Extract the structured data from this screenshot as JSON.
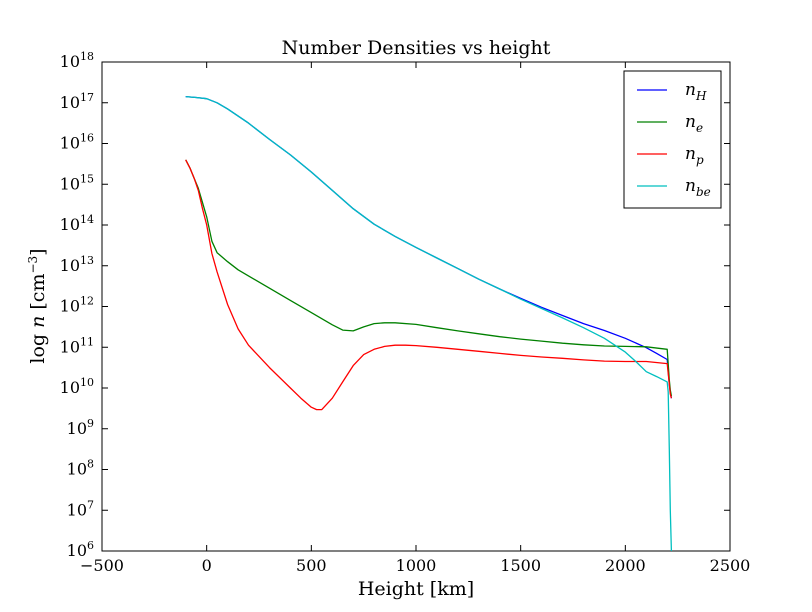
{
  "chart_data": {
    "type": "line",
    "title": "Number Densities vs height",
    "xlabel": "Height [km]",
    "ylabel": "log n [cm⁻³]",
    "xlim": [
      -500,
      2500
    ],
    "ylim_log10": [
      6,
      18
    ],
    "y_scale": "log",
    "x_ticks": [
      -500,
      0,
      500,
      1000,
      1500,
      2000,
      2500
    ],
    "x_tick_labels": [
      "−500",
      "0",
      "500",
      "1000",
      "1500",
      "2000",
      "2500"
    ],
    "y_ticks_log10": [
      6,
      7,
      8,
      9,
      10,
      11,
      12,
      13,
      14,
      15,
      16,
      17,
      18
    ],
    "y_tick_base": "10",
    "grid": false,
    "legend_position": "top-right",
    "series": [
      {
        "name": "n_H",
        "legend_main": "n",
        "legend_sub": "H",
        "color": "#0000ff",
        "x": [
          -100,
          -50,
          0,
          50,
          100,
          200,
          300,
          400,
          500,
          600,
          700,
          800,
          900,
          1000,
          1100,
          1200,
          1300,
          1400,
          1500,
          1600,
          1700,
          1800,
          1900,
          2000,
          2100,
          2150,
          2200,
          2210,
          2215,
          2220
        ],
        "log_y": [
          17.15,
          17.13,
          17.1,
          17.0,
          16.85,
          16.5,
          16.1,
          15.72,
          15.3,
          14.85,
          14.4,
          14.02,
          13.72,
          13.45,
          13.19,
          12.93,
          12.67,
          12.43,
          12.2,
          11.98,
          11.78,
          11.58,
          11.41,
          11.22,
          10.99,
          10.85,
          10.7,
          10.1,
          9.9,
          9.75
        ]
      },
      {
        "name": "n_e",
        "legend_main": "n",
        "legend_sub": "e",
        "color": "#008000",
        "x": [
          -100,
          -80,
          -60,
          -40,
          -20,
          0,
          25,
          50,
          100,
          150,
          200,
          300,
          400,
          500,
          600,
          650,
          700,
          750,
          800,
          850,
          900,
          1000,
          1100,
          1200,
          1300,
          1400,
          1500,
          1600,
          1700,
          1800,
          1900,
          2000,
          2100,
          2200,
          2210,
          2215,
          2220
        ],
        "log_y": [
          15.6,
          15.4,
          15.15,
          14.9,
          14.55,
          14.2,
          13.6,
          13.32,
          13.1,
          12.9,
          12.75,
          12.45,
          12.15,
          11.85,
          11.55,
          11.42,
          11.4,
          11.5,
          11.58,
          11.6,
          11.6,
          11.56,
          11.48,
          11.4,
          11.33,
          11.26,
          11.2,
          11.15,
          11.1,
          11.06,
          11.03,
          11.02,
          11.01,
          10.95,
          10.2,
          9.95,
          9.8
        ]
      },
      {
        "name": "n_p",
        "legend_main": "n",
        "legend_sub": "p",
        "color": "#ff0000",
        "x": [
          -100,
          -80,
          -60,
          -40,
          -20,
          0,
          25,
          50,
          100,
          150,
          200,
          300,
          400,
          450,
          500,
          525,
          550,
          600,
          650,
          700,
          750,
          800,
          850,
          900,
          950,
          1000,
          1100,
          1200,
          1300,
          1400,
          1500,
          1600,
          1700,
          1800,
          1900,
          2000,
          2100,
          2200,
          2210,
          2215,
          2220
        ],
        "log_y": [
          15.6,
          15.4,
          15.15,
          14.85,
          14.4,
          14.0,
          13.3,
          12.85,
          12.05,
          11.45,
          11.05,
          10.5,
          10.0,
          9.75,
          9.53,
          9.47,
          9.47,
          9.75,
          10.15,
          10.55,
          10.82,
          10.95,
          11.02,
          11.05,
          11.05,
          11.04,
          11.0,
          10.95,
          10.9,
          10.85,
          10.8,
          10.76,
          10.73,
          10.69,
          10.66,
          10.65,
          10.65,
          10.6,
          10.1,
          9.85,
          9.75
        ]
      },
      {
        "name": "n_be",
        "legend_main": "n",
        "legend_sub": "be",
        "color": "#00bfbf",
        "x": [
          -100,
          -50,
          0,
          50,
          100,
          200,
          300,
          400,
          500,
          600,
          700,
          800,
          900,
          1000,
          1100,
          1200,
          1300,
          1400,
          1500,
          1600,
          1700,
          1800,
          1900,
          2000,
          2050,
          2100,
          2150,
          2200,
          2205,
          2210,
          2215,
          2220
        ],
        "log_y": [
          17.15,
          17.13,
          17.1,
          17.0,
          16.85,
          16.5,
          16.1,
          15.72,
          15.3,
          14.85,
          14.4,
          14.02,
          13.72,
          13.45,
          13.19,
          12.93,
          12.67,
          12.43,
          12.18,
          11.95,
          11.72,
          11.48,
          11.22,
          10.88,
          10.65,
          10.4,
          10.28,
          10.15,
          9.9,
          8.5,
          7.0,
          6.0
        ]
      }
    ]
  }
}
